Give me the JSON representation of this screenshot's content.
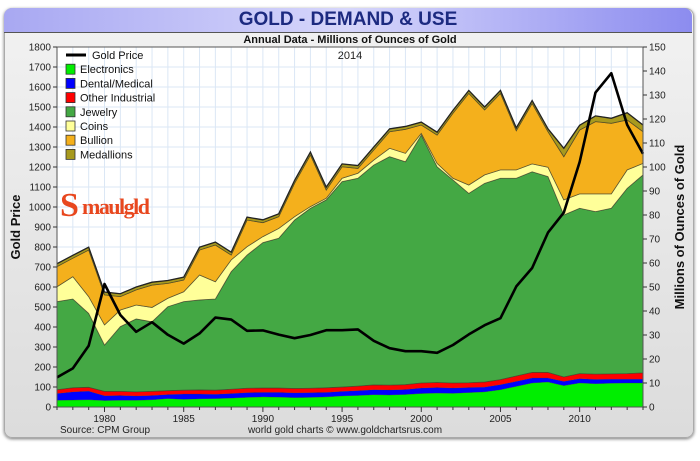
{
  "header": {
    "title": "GOLD - DEMAND & USE",
    "subtitle": "Annual Data - Millions of Ounces of Gold",
    "year_note": "2014"
  },
  "footer": {
    "source": "Source: CPM Group",
    "credit": "world gold charts © www.goldchartsrus.com"
  },
  "logo": {
    "text": "Smaulgld",
    "color": "#e8471e"
  },
  "chart_data": {
    "type": "area",
    "stacked": true,
    "title": "GOLD - DEMAND & USE",
    "subtitle": "Annual Data - Millions of Ounces of Gold",
    "ylabel_left": "Gold Price",
    "ylabel_right": "Millions of Ounces of Gold",
    "ylim_left": [
      0,
      1800
    ],
    "ylim_right": [
      0,
      150
    ],
    "yticks_left": [
      0,
      100,
      200,
      300,
      400,
      500,
      600,
      700,
      800,
      900,
      1000,
      1100,
      1200,
      1300,
      1400,
      1500,
      1600,
      1700,
      1800
    ],
    "yticks_right": [
      0,
      10,
      20,
      30,
      40,
      50,
      60,
      70,
      80,
      90,
      100,
      110,
      120,
      130,
      140,
      150
    ],
    "xticks": [
      1980,
      1985,
      1990,
      1995,
      2000,
      2005,
      2010
    ],
    "xlim": [
      1977,
      2014
    ],
    "grid": true,
    "legend_position": "top-left",
    "x": [
      1977,
      1978,
      1979,
      1980,
      1981,
      1982,
      1983,
      1984,
      1985,
      1986,
      1987,
      1988,
      1989,
      1990,
      1991,
      1992,
      1993,
      1994,
      1995,
      1996,
      1997,
      1998,
      1999,
      2000,
      2001,
      2002,
      2003,
      2004,
      2005,
      2006,
      2007,
      2008,
      2009,
      2010,
      2011,
      2012,
      2013,
      2014
    ],
    "series": [
      {
        "name": "Electronics",
        "axis": "right",
        "color": "#00ee00",
        "values": [
          2.8,
          2.9,
          3.0,
          2.7,
          2.8,
          2.8,
          3.0,
          3.5,
          3.2,
          3.4,
          3.5,
          3.7,
          4.0,
          4.2,
          4.1,
          3.9,
          4.0,
          4.2,
          4.6,
          4.8,
          5.1,
          5.0,
          5.2,
          5.6,
          5.8,
          5.7,
          6.0,
          6.3,
          7.2,
          8.6,
          10.0,
          10.4,
          8.9,
          10.0,
          9.7,
          9.9,
          10.0,
          10.0
        ]
      },
      {
        "name": "Dental/Medical",
        "axis": "right",
        "color": "#0000ff",
        "values": [
          2.8,
          3.4,
          3.6,
          2.0,
          2.0,
          1.8,
          1.8,
          1.7,
          2.2,
          2.0,
          1.8,
          1.9,
          2.0,
          1.9,
          2.0,
          2.0,
          2.0,
          1.9,
          1.9,
          2.0,
          2.1,
          2.1,
          2.1,
          2.3,
          2.3,
          2.2,
          2.1,
          2.0,
          2.1,
          2.1,
          2.1,
          1.7,
          1.8,
          1.8,
          1.8,
          1.7,
          1.6,
          1.6
        ]
      },
      {
        "name": "Other Industrial",
        "axis": "right",
        "color": "#ff0000",
        "values": [
          1.6,
          1.7,
          1.6,
          1.8,
          1.7,
          1.7,
          1.7,
          1.6,
          1.6,
          1.7,
          1.7,
          1.8,
          1.8,
          1.8,
          1.8,
          1.8,
          1.8,
          1.9,
          1.8,
          1.9,
          2.0,
          2.0,
          2.0,
          2.1,
          2.1,
          2.1,
          2.0,
          2.1,
          2.1,
          2.2,
          2.3,
          2.3,
          1.8,
          2.1,
          2.2,
          2.2,
          2.3,
          2.6
        ]
      },
      {
        "name": "Jewelry",
        "axis": "right",
        "color": "#44a844",
        "values": [
          36.7,
          37.0,
          30.8,
          19.3,
          27.0,
          30.4,
          29.0,
          35.0,
          36.9,
          37.5,
          38.0,
          49.0,
          55.5,
          60.6,
          62.4,
          70.2,
          75.0,
          78.3,
          85.6,
          86.6,
          91.6,
          95.2,
          92.9,
          103.3,
          89.9,
          84.6,
          78.9,
          82.8,
          83.9,
          82.4,
          83.6,
          81.6,
          67.5,
          68.9,
          67.7,
          69.0,
          77.2,
          82.5
        ]
      },
      {
        "name": "Coins",
        "axis": "right",
        "color": "#ffff99",
        "values": [
          6.2,
          9.3,
          7.0,
          8.4,
          6.9,
          5.8,
          6.0,
          3.5,
          4.1,
          10.4,
          7.2,
          4.9,
          3.5,
          2.5,
          4.1,
          1.4,
          0.7,
          0.7,
          1.4,
          2.1,
          2.1,
          3.5,
          3.5,
          0.7,
          1.4,
          0.7,
          3.5,
          3.5,
          3.5,
          3.5,
          3.3,
          3.9,
          6.3,
          6.0,
          7.4,
          6.0,
          7.7,
          4.8
        ]
      },
      {
        "name": "Bullion",
        "axis": "right",
        "color": "#f4b01c",
        "values": [
          8.4,
          7.7,
          19.4,
          12.5,
          5.6,
          6.3,
          9.3,
          6.2,
          4.9,
          10.4,
          15.3,
          2.0,
          11.1,
          5.8,
          4.9,
          13.9,
          21.5,
          3.4,
          4.8,
          2.0,
          4.2,
          6.9,
          10.0,
          3.5,
          11.8,
          27.1,
          38.2,
          27.1,
          31.9,
          16.3,
          25.2,
          14.8,
          18.0,
          26.6,
          30.1,
          29.4,
          20.8,
          13.2
        ]
      },
      {
        "name": "Medallions",
        "axis": "right",
        "color": "#a89a1e",
        "values": [
          1.2,
          1.2,
          1.2,
          1.2,
          1.2,
          1.2,
          1.2,
          1.2,
          1.2,
          1.2,
          1.2,
          1.2,
          1.2,
          1.2,
          1.2,
          1.2,
          1.2,
          1.2,
          1.2,
          1.2,
          1.2,
          1.2,
          1.2,
          1.2,
          1.2,
          1.2,
          1.2,
          1.2,
          1.2,
          1.2,
          1.2,
          1.2,
          3.5,
          2.0,
          2.4,
          2.1,
          3.0,
          2.8
        ]
      }
    ],
    "line_series": {
      "name": "Gold Price",
      "axis": "left",
      "color": "#000000",
      "values": [
        148,
        193,
        306,
        615,
        460,
        376,
        424,
        361,
        317,
        368,
        447,
        437,
        381,
        383,
        362,
        344,
        360,
        384,
        384,
        388,
        331,
        294,
        279,
        279,
        271,
        310,
        363,
        409,
        444,
        603,
        695,
        872,
        972,
        1225,
        1572,
        1669,
        1411,
        1266
      ]
    }
  }
}
